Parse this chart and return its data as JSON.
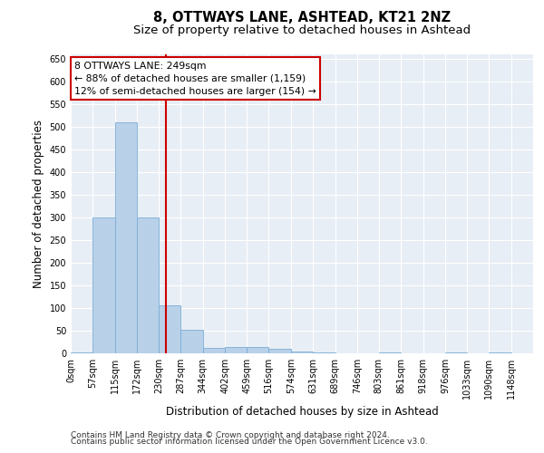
{
  "title": "8, OTTWAYS LANE, ASHTEAD, KT21 2NZ",
  "subtitle": "Size of property relative to detached houses in Ashtead",
  "xlabel": "Distribution of detached houses by size in Ashtead",
  "ylabel": "Number of detached properties",
  "footer_line1": "Contains HM Land Registry data © Crown copyright and database right 2024.",
  "footer_line2": "Contains public sector information licensed under the Open Government Licence v3.0.",
  "bin_edges": [
    0,
    57,
    115,
    172,
    230,
    287,
    344,
    402,
    459,
    516,
    574,
    631,
    689,
    746,
    803,
    861,
    918,
    976,
    1033,
    1090,
    1148
  ],
  "bin_labels": [
    "0sqm",
    "57sqm",
    "115sqm",
    "172sqm",
    "230sqm",
    "287sqm",
    "344sqm",
    "402sqm",
    "459sqm",
    "516sqm",
    "574sqm",
    "631sqm",
    "689sqm",
    "746sqm",
    "803sqm",
    "861sqm",
    "918sqm",
    "976sqm",
    "1033sqm",
    "1090sqm",
    "1148sqm"
  ],
  "bar_heights": [
    3,
    300,
    510,
    300,
    107,
    53,
    12,
    14,
    14,
    10,
    5,
    3,
    0,
    0,
    3,
    0,
    0,
    3,
    0,
    3
  ],
  "bar_color": "#b8d0e8",
  "bar_edgecolor": "#7aaed6",
  "subject_size": 249,
  "subject_line_color": "#cc0000",
  "annotation_text_line1": "8 OTTWAYS LANE: 249sqm",
  "annotation_text_line2": "← 88% of detached houses are smaller (1,159)",
  "annotation_text_line3": "12% of semi-detached houses are larger (154) →",
  "annotation_box_facecolor": "#ffffff",
  "annotation_box_edgecolor": "#cc0000",
  "ylim": [
    0,
    660
  ],
  "yticks": [
    0,
    50,
    100,
    150,
    200,
    250,
    300,
    350,
    400,
    450,
    500,
    550,
    600,
    650
  ],
  "bg_color": "#e8eef5",
  "grid_color": "#ffffff",
  "title_fontsize": 10.5,
  "subtitle_fontsize": 9.5,
  "axis_label_fontsize": 8.5,
  "tick_fontsize": 7,
  "footer_fontsize": 6.5
}
